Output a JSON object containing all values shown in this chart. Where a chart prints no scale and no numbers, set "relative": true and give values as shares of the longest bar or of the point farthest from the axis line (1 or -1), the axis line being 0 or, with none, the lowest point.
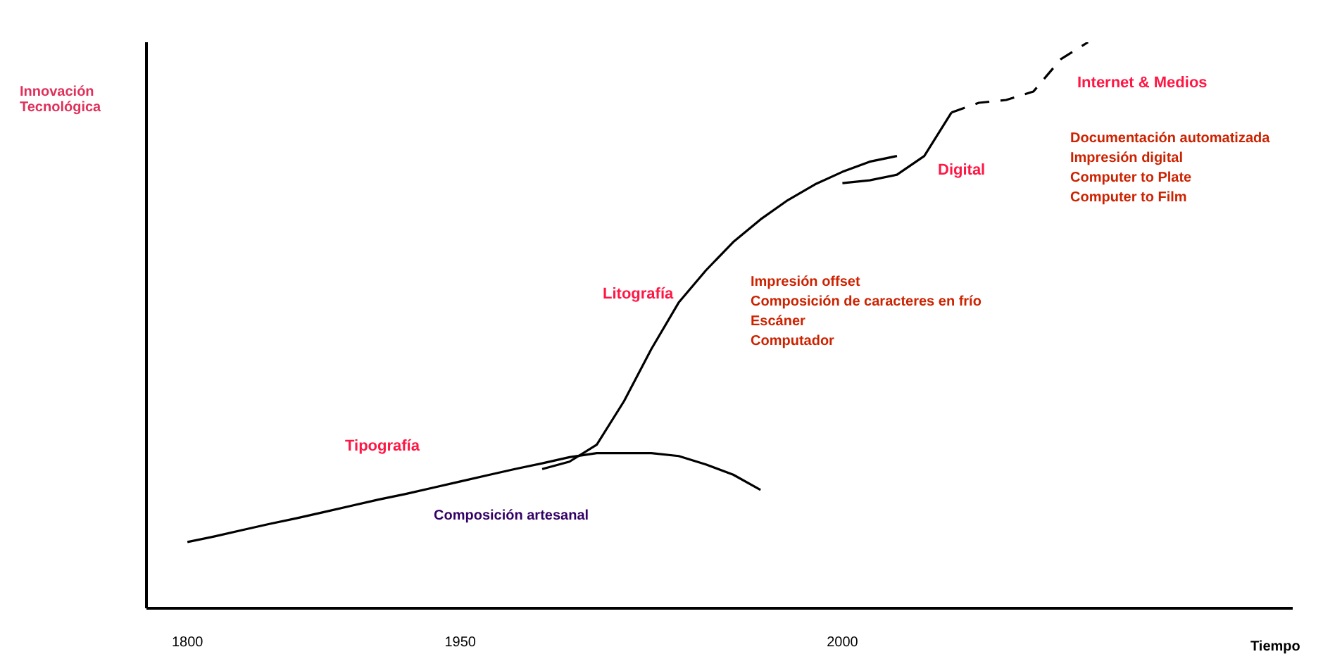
{
  "chart_data": {
    "type": "line",
    "relative": true,
    "xlabel": "Tiempo",
    "ylabel": "Innovación Tecnológica",
    "categories": [
      null,
      "1800",
      null,
      null,
      null,
      null,
      null,
      null,
      null,
      null,
      null,
      "1950",
      null,
      null,
      null,
      null,
      null,
      null,
      null,
      null,
      null,
      null,
      null,
      null,
      null,
      "2000",
      null,
      null,
      null,
      null,
      null,
      null,
      null,
      null,
      null,
      null,
      null,
      null,
      null,
      null,
      null,
      null
    ],
    "marker": "none",
    "series": [
      {
        "color": "#000000",
        "values": [
          null,
          0.117,
          0.127,
          0.138,
          0.149,
          0.159,
          0.17,
          0.181,
          0.192,
          0.202,
          0.213,
          0.224,
          0.235,
          0.246,
          0.256,
          0.267,
          0.274,
          0.274,
          0.274,
          0.269,
          0.254,
          0.236,
          0.209,
          null,
          null,
          null,
          null,
          null,
          null,
          null,
          null,
          null,
          null,
          null,
          null,
          null,
          null,
          null,
          null,
          null,
          null,
          null
        ]
      },
      {
        "color": "#000000",
        "values": [
          null,
          null,
          null,
          null,
          null,
          null,
          null,
          null,
          null,
          null,
          null,
          null,
          null,
          null,
          0.246,
          0.259,
          0.289,
          0.366,
          0.458,
          0.54,
          0.597,
          0.647,
          0.687,
          0.721,
          0.749,
          0.771,
          0.789,
          0.799,
          null,
          null,
          null,
          null,
          null,
          null,
          null,
          null,
          null,
          null,
          null,
          null,
          null,
          null
        ]
      },
      {
        "color": "#000000",
        "values": [
          null,
          null,
          null,
          null,
          null,
          null,
          null,
          null,
          null,
          null,
          null,
          null,
          null,
          null,
          null,
          null,
          null,
          null,
          null,
          null,
          null,
          null,
          null,
          null,
          null,
          0.751,
          0.756,
          0.766,
          0.799,
          0.876,
          null,
          null,
          null,
          null,
          null,
          null,
          null,
          null,
          null,
          null,
          null,
          null
        ]
      },
      {
        "color": "#000000",
        "line_style": "dashed",
        "values": [
          null,
          null,
          null,
          null,
          null,
          null,
          null,
          null,
          null,
          null,
          null,
          null,
          null,
          null,
          null,
          null,
          null,
          null,
          null,
          null,
          null,
          null,
          null,
          null,
          null,
          null,
          null,
          null,
          null,
          0.876,
          0.893,
          0.898,
          0.913,
          0.97,
          1.0,
          null,
          null,
          null,
          null,
          null,
          null,
          null
        ]
      }
    ],
    "annotations": [
      "Tipografía",
      "Composición artesanal",
      "Litografía",
      "Impresión offset\nComposición de caracteres en frío\nEscáner\nComputador",
      "Digital",
      "Internet & Medios",
      "Documentación automatizada\nImpresión digital\nComputer to Plate\nComputer to Film"
    ]
  }
}
